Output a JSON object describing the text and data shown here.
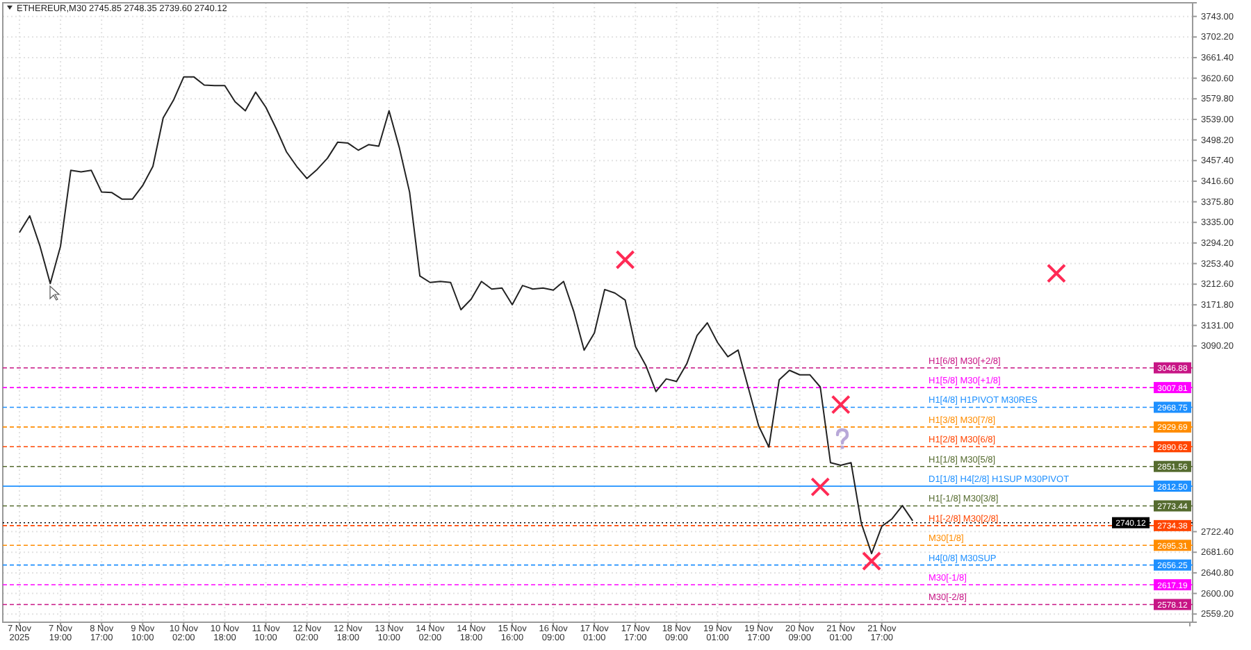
{
  "chart_data": {
    "type": "line",
    "title": "ETHEREUR,M30  2745.85 2748.35 2739.60 2740.12",
    "categories": [
      "7 Nov 2025",
      null,
      null,
      null,
      "7 Nov 19:00",
      null,
      null,
      null,
      "8 Nov 17:00",
      null,
      null,
      null,
      "9 Nov 10:00",
      null,
      null,
      null,
      "10 Nov 02:00",
      null,
      null,
      null,
      "10 Nov 18:00",
      null,
      null,
      null,
      "11 Nov 10:00",
      null,
      null,
      null,
      "12 Nov 02:00",
      null,
      null,
      null,
      "12 Nov 18:00",
      null,
      null,
      null,
      "13 Nov 10:00",
      null,
      null,
      null,
      "14 Nov 02:00",
      null,
      null,
      null,
      "14 Nov 18:00",
      null,
      null,
      null,
      "15 Nov 16:00",
      null,
      null,
      null,
      "16 Nov 09:00",
      null,
      null,
      null,
      "17 Nov 01:00",
      null,
      null,
      null,
      "17 Nov 17:00",
      null,
      null,
      null,
      "18 Nov 09:00",
      null,
      null,
      null,
      "19 Nov 01:00",
      null,
      null,
      null,
      "19 Nov 17:00",
      null,
      null,
      null,
      "20 Nov 09:00",
      null,
      null,
      null,
      "21 Nov 01:00",
      null,
      null,
      null,
      "21 Nov 17:00",
      null,
      null,
      null,
      null,
      null,
      null,
      null,
      null,
      null,
      null,
      null,
      null,
      null,
      null,
      null,
      null,
      null,
      null,
      null,
      null,
      null,
      null,
      null,
      null,
      null,
      null,
      null,
      null,
      null,
      null
    ],
    "ylim": [
      2543,
      3770
    ],
    "yticks": [
      {
        "value": 3743,
        "label": "3743.00"
      },
      {
        "value": 3702.2,
        "label": "3702.20"
      },
      {
        "value": 3661.4,
        "label": "3661.40"
      },
      {
        "value": 3620.6,
        "label": "3620.60"
      },
      {
        "value": 3579.8,
        "label": "3579.80"
      },
      {
        "value": 3539,
        "label": "3539.00"
      },
      {
        "value": 3498.2,
        "label": "3498.20"
      },
      {
        "value": 3457.4,
        "label": "3457.40"
      },
      {
        "value": 3416.6,
        "label": "3416.60"
      },
      {
        "value": 3375.8,
        "label": "3375.80"
      },
      {
        "value": 3335,
        "label": "3335.00"
      },
      {
        "value": 3294.2,
        "label": "3294.20"
      },
      {
        "value": 3253.4,
        "label": "3253.40"
      },
      {
        "value": 3212.6,
        "label": "3212.60"
      },
      {
        "value": 3171.8,
        "label": "3171.80"
      },
      {
        "value": 3131,
        "label": "3131.00"
      },
      {
        "value": 3090.2,
        "label": "3090.20"
      },
      {
        "value": 2722.4,
        "label": "2722.40"
      },
      {
        "value": 2681.6,
        "label": "2681.60"
      },
      {
        "value": 2640.8,
        "label": "2640.80"
      },
      {
        "value": 2600,
        "label": "2600.00"
      },
      {
        "value": 2559.2,
        "label": "2559.20"
      }
    ],
    "grid": true,
    "series": [
      {
        "color": "#222222",
        "line_style": "solid",
        "marker": "none",
        "values": [
          3315,
          3348,
          3288,
          3214,
          3288,
          3438,
          3435,
          3438,
          3395,
          3394,
          3381,
          3381,
          3408,
          3446,
          3542,
          3577,
          3623,
          3623,
          3607,
          3606,
          3606,
          3574,
          3556,
          3593,
          3563,
          3521,
          3475,
          3446,
          3422,
          3440,
          3462,
          3494,
          3492,
          3478,
          3489,
          3486,
          3556,
          3483,
          3395,
          3229,
          3216,
          3218,
          3216,
          3162,
          3183,
          3218,
          3203,
          3205,
          3172,
          3210,
          3203,
          3205,
          3201,
          3218,
          3158,
          3082,
          3116,
          3202,
          3195,
          3181,
          3089,
          3052,
          3000,
          3025,
          3020,
          3055,
          3111,
          3136,
          3097,
          3069,
          3082,
          3007,
          2932,
          2890,
          3023,
          3042,
          3033,
          3033,
          3009,
          2859,
          2854,
          2859,
          2739,
          2679,
          2733,
          2748,
          2774,
          2744,
          null,
          null,
          null,
          null,
          null,
          null,
          null,
          null,
          null,
          null,
          null,
          null,
          null,
          null,
          null,
          null,
          null,
          null,
          null,
          null,
          null,
          null,
          null,
          null,
          null,
          null,
          null
        ]
      },
      {
        "type": "scatter",
        "color": "#ff2a55",
        "marker": "cross",
        "values": [
          null,
          null,
          null,
          null,
          null,
          null,
          null,
          null,
          null,
          null,
          null,
          null,
          null,
          null,
          null,
          null,
          null,
          null,
          null,
          null,
          null,
          null,
          null,
          null,
          null,
          null,
          null,
          null,
          null,
          null,
          null,
          null,
          null,
          null,
          null,
          null,
          null,
          null,
          null,
          null,
          null,
          null,
          null,
          null,
          null,
          null,
          null,
          null,
          null,
          null,
          null,
          null,
          null,
          null,
          null,
          null,
          null,
          null,
          null,
          3261,
          null,
          null,
          null,
          null,
          null,
          null,
          null,
          null,
          null,
          null,
          null,
          null,
          null,
          null,
          null,
          null,
          null,
          null,
          2811,
          null,
          2974,
          null,
          null,
          2664,
          null,
          null,
          null,
          null,
          null,
          null,
          null,
          null,
          null,
          null,
          null,
          null,
          null,
          null,
          null,
          null,
          null,
          3234,
          null,
          null,
          null,
          null,
          null,
          null,
          null,
          null,
          null,
          null,
          null,
          null,
          null
        ]
      }
    ],
    "ref_lines": [
      {
        "axis": "y",
        "value": 3046.88,
        "label": "3046.88",
        "color": "#c71585",
        "line_style": "dashed"
      },
      {
        "axis": "y",
        "value": 3007.81,
        "label": "3007.81",
        "color": "#ff00ff",
        "line_style": "dashed"
      },
      {
        "axis": "y",
        "value": 2968.75,
        "label": "2968.75",
        "color": "#1e90ff",
        "line_style": "dashed"
      },
      {
        "axis": "y",
        "value": 2929.69,
        "label": "2929.69",
        "color": "#ff8c00",
        "line_style": "dashed"
      },
      {
        "axis": "y",
        "value": 2890.62,
        "label": "2890.62",
        "color": "#ff4500",
        "line_style": "dashed"
      },
      {
        "axis": "y",
        "value": 2851.56,
        "label": "2851.56",
        "color": "#556b2f",
        "line_style": "dashed"
      },
      {
        "axis": "y",
        "value": 2812.5,
        "label": "2812.50",
        "color": "#1e90ff",
        "line_style": "solid"
      },
      {
        "axis": "y",
        "value": 2773.44,
        "label": "2773.44",
        "color": "#556b2f",
        "line_style": "dashed"
      },
      {
        "axis": "y",
        "value": 2740.12,
        "label": "2740.12",
        "color": "#000000",
        "line_style": "dotted"
      },
      {
        "axis": "y",
        "value": 2734.38,
        "label": "2734.38",
        "color": "#ff4500",
        "line_style": "dashed"
      },
      {
        "axis": "y",
        "value": 2695.31,
        "label": "2695.31",
        "color": "#ff8c00",
        "line_style": "dashed"
      },
      {
        "axis": "y",
        "value": 2656.25,
        "label": "2656.25",
        "color": "#1e90ff",
        "line_style": "dashed"
      },
      {
        "axis": "y",
        "value": 2617.19,
        "label": "2617.19",
        "color": "#ff00ff",
        "line_style": "dashed"
      },
      {
        "axis": "y",
        "value": 2578.12,
        "label": "2578.12",
        "color": "#c71585",
        "line_style": "dashed"
      }
    ],
    "annotations": [
      {
        "text": "H1[6/8] M30[+2/8]",
        "y": 3046.88
      },
      {
        "text": "H1[5/8] M30[+1/8]",
        "y": 3007.81
      },
      {
        "text": "H1[4/8] H1PIVOT M30RES",
        "y": 2968.75
      },
      {
        "text": "H1[3/8] M30[7/8]",
        "y": 2929.69
      },
      {
        "text": "H1[2/8] M30[6/8]",
        "y": 2890.62
      },
      {
        "text": "H1[1/8] M30[5/8]",
        "y": 2851.56
      },
      {
        "text": "D1[1/8] H4[2/8] H1SUP M30PIVOT",
        "y": 2812.5
      },
      {
        "text": "H1[-1/8] M30[3/8]",
        "y": 2773.44
      },
      {
        "text": "H1[-2/8] M30[2/8]",
        "y": 2734.38
      },
      {
        "text": "M30[1/8]",
        "y": 2695.31
      },
      {
        "text": "H4[0/8] M30SUP",
        "y": 2656.25
      },
      {
        "text": "M30[-1/8]",
        "y": 2617.19
      },
      {
        "text": "M30[-2/8]",
        "y": 2578.12
      }
    ]
  }
}
